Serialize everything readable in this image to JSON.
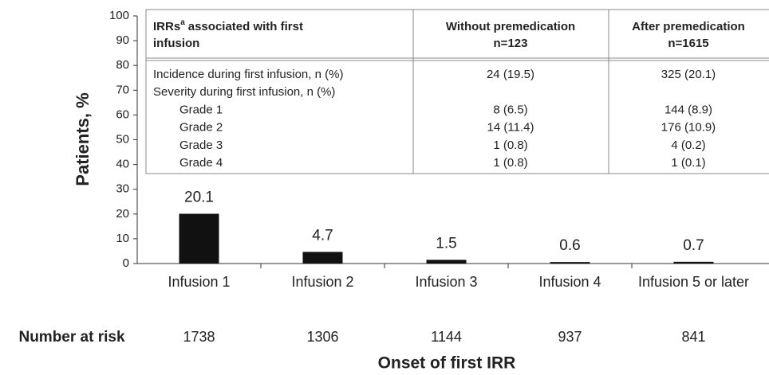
{
  "chart_data": {
    "type": "bar",
    "y_label": "Patients, %",
    "x_label": "Onset of first IRR",
    "categories": [
      "Infusion 1",
      "Infusion 2",
      "Infusion 3",
      "Infusion 4",
      "Infusion 5 or later"
    ],
    "values": [
      20.1,
      4.7,
      1.5,
      0.6,
      0.7
    ],
    "color": "#111111",
    "ylim": [
      0,
      100
    ],
    "yticks": [
      0,
      10,
      20,
      30,
      40,
      50,
      60,
      70,
      80,
      90,
      100
    ],
    "number_at_risk": {
      "label": "Number at risk",
      "values": [
        1738,
        1306,
        1144,
        937,
        841
      ]
    },
    "inset_table": {
      "columns": [
        {
          "head": "IRRs",
          "sup": "a",
          "tail": [
            "associated with first",
            "infusion"
          ]
        },
        {
          "lines": [
            "Without premedication",
            "n=123"
          ]
        },
        {
          "lines": [
            "After premedication",
            "n=1615"
          ]
        }
      ],
      "rows": [
        [
          "Incidence during first infusion, n (%)",
          "24 (19.5)",
          "325 (20.1)"
        ],
        [
          "Severity during first infusion, n (%)"
        ],
        [
          "Grade 1",
          "8 (6.5)",
          "144 (8.9)"
        ],
        [
          "Grade 2",
          "14 (11.4)",
          "176 (10.9)"
        ],
        [
          "Grade 3",
          "1 (0.8)",
          "4 (0.2)"
        ],
        [
          "Grade 4",
          "1 (0.8)",
          "1 (0.1)"
        ]
      ]
    }
  }
}
